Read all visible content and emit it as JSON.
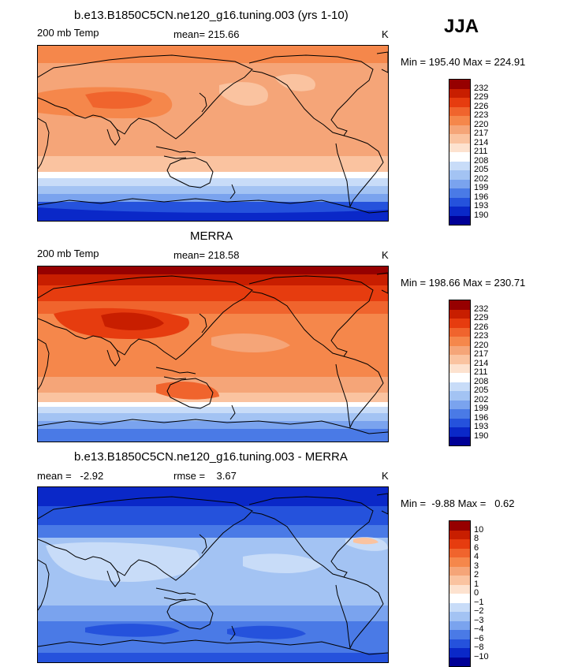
{
  "season": "JJA",
  "panels": [
    {
      "title": "b.e13.B1850C5CN.ne120_g16.tuning.003 (yrs 1-10)",
      "left": "200 mb Temp",
      "center": "mean= 215.66",
      "units": "K",
      "minmax": "Min = 195.40 Max = 224.91",
      "field": "model"
    },
    {
      "title": "MERRA",
      "left": "200 mb Temp",
      "center": "mean= 218.58",
      "units": "K",
      "minmax": "Min = 198.66 Max = 230.71",
      "field": "obs"
    },
    {
      "title": "b.e13.B1850C5CN.ne120_g16.tuning.003 - MERRA",
      "left": "mean =   -2.92",
      "center": "rmse =    3.67",
      "units": "K",
      "minmax": "Min =  -9.88 Max =   0.62",
      "field": "diff"
    }
  ],
  "abs_levels": [
    "232",
    "229",
    "226",
    "223",
    "220",
    "217",
    "214",
    "211",
    "208",
    "205",
    "202",
    "199",
    "196",
    "193",
    "190"
  ],
  "diff_levels": [
    "10",
    "8",
    "6",
    "4",
    "3",
    "2",
    "1",
    "0",
    "−1",
    "−2",
    "−3",
    "−4",
    "−6",
    "−8",
    "−10"
  ],
  "colors": {
    "abs": [
      "#960000",
      "#c81e00",
      "#e63c0f",
      "#f0642d",
      "#f5874b",
      "#f5a578",
      "#fac3a0",
      "#fde2cf",
      "#ffffff",
      "#c8dcf8",
      "#a3c3f3",
      "#7aa3ee",
      "#4a7ae6",
      "#2552dc",
      "#0a28c8",
      "#000096"
    ],
    "diff": [
      "#960000",
      "#c81e00",
      "#e63c0f",
      "#f0642d",
      "#f5874b",
      "#f5a578",
      "#fac3a0",
      "#fde2cf",
      "#ffffff",
      "#c8dcf8",
      "#a3c3f3",
      "#7aa3ee",
      "#4a7ae6",
      "#2552dc",
      "#0a28c8",
      "#000096"
    ]
  }
}
